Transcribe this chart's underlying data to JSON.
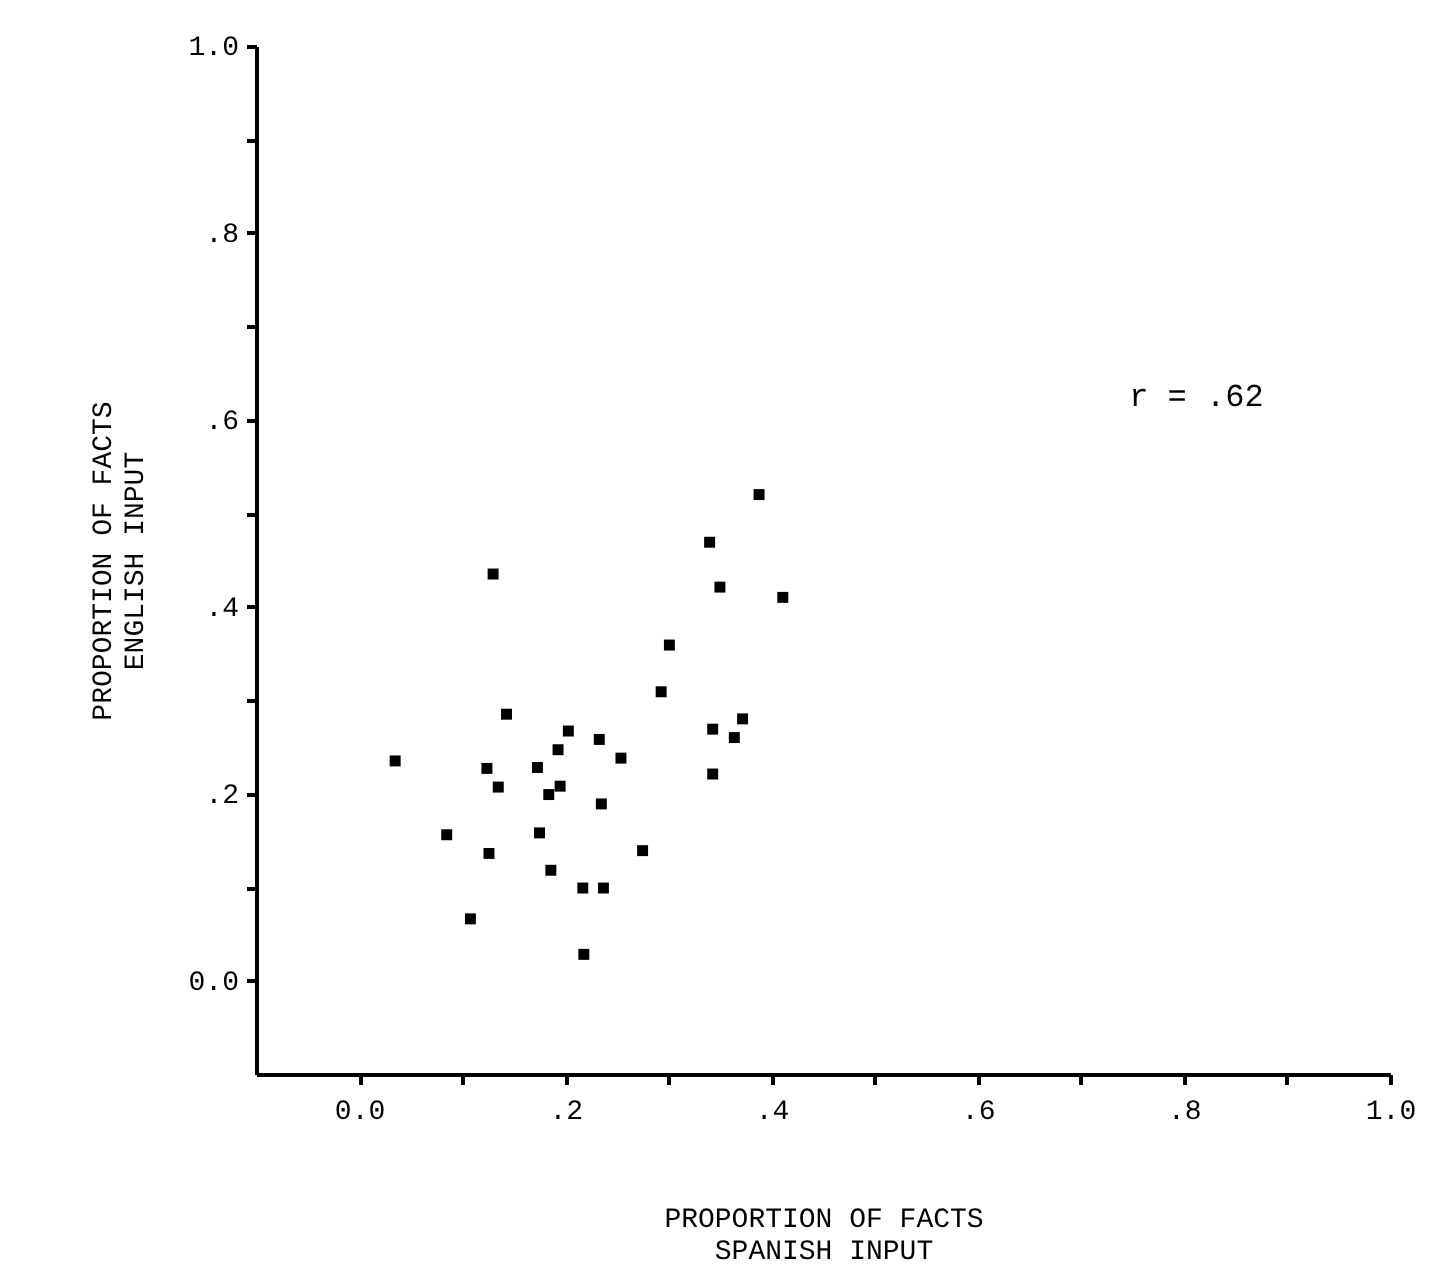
{
  "chart_data": {
    "type": "scatter",
    "xlabel": "PROPORTION OF FACTS\nSPANISH INPUT",
    "ylabel": "PROPORTION OF FACTS\nENGLISH INPUT",
    "annotations": [
      "r = .62"
    ],
    "xlim": [
      -0.1,
      1.0
    ],
    "ylim": [
      -0.1,
      1.0
    ],
    "xticks": [
      {
        "value": 0,
        "label": "0.0"
      },
      {
        "value": 0.1,
        "label": null
      },
      {
        "value": 0.2,
        "label": ".2"
      },
      {
        "value": 0.3,
        "label": null
      },
      {
        "value": 0.4,
        "label": ".4"
      },
      {
        "value": 0.5,
        "label": null
      },
      {
        "value": 0.6,
        "label": ".6"
      },
      {
        "value": 0.7,
        "label": null
      },
      {
        "value": 0.8,
        "label": ".8"
      },
      {
        "value": 0.9,
        "label": null
      },
      {
        "value": 1.0,
        "label": "1.0"
      }
    ],
    "yticks": [
      {
        "value": 0,
        "label": "0.0"
      },
      {
        "value": 0.1,
        "label": null
      },
      {
        "value": 0.2,
        "label": ".2"
      },
      {
        "value": 0.3,
        "label": null
      },
      {
        "value": 0.4,
        "label": ".4"
      },
      {
        "value": 0.5,
        "label": null
      },
      {
        "value": 0.6,
        "label": ".6"
      },
      {
        "value": 0.7,
        "label": null
      },
      {
        "value": 0.8,
        "label": ".8"
      },
      {
        "value": 0.9,
        "label": null
      },
      {
        "value": 1.0,
        "label": "1.0"
      }
    ],
    "grid": false,
    "marker": "square",
    "series": [
      {
        "color": "#000000",
        "x": [
          0.388,
          0.34,
          0.13,
          0.35,
          0.411,
          0.301,
          0.293,
          0.143,
          0.372,
          0.343,
          0.364,
          0.203,
          0.233,
          0.193,
          0.254,
          0.035,
          0.124,
          0.173,
          0.343,
          0.135,
          0.195,
          0.184,
          0.235,
          0.085,
          0.175,
          0.275,
          0.126,
          0.186,
          0.217,
          0.237,
          0.108,
          0.218
        ],
        "values": [
          0.52,
          0.469,
          0.435,
          0.421,
          0.41,
          0.359,
          0.309,
          0.285,
          0.28,
          0.269,
          0.26,
          0.267,
          0.258,
          0.247,
          0.238,
          0.235,
          0.227,
          0.228,
          0.221,
          0.207,
          0.208,
          0.199,
          0.189,
          0.156,
          0.158,
          0.139,
          0.136,
          0.118,
          0.099,
          0.099,
          0.066,
          0.028
        ]
      }
    ]
  }
}
